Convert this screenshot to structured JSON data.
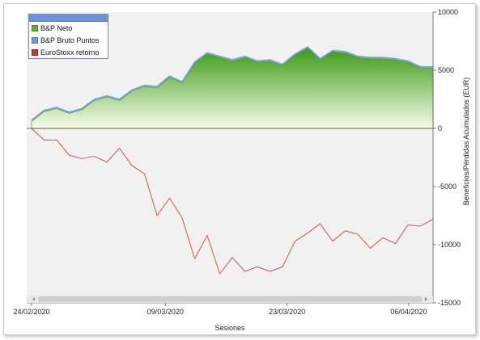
{
  "colors": {
    "neto_fill_top": "#3c9a16",
    "neto_fill_bottom": "#f7fbe9",
    "bruto_line": "#6e9ee0",
    "euro_line": "#d2553f",
    "plot_bg": "#f1f1f1",
    "scrollbar": "#cfcfcf"
  },
  "chart_data": {
    "type": "area",
    "xlabel": "Sesiones",
    "ylabel": "Beneficios/Pérdidas Acumulados (EUR)",
    "ylim": [
      -15000,
      10000
    ],
    "yticks": [
      10000,
      5000,
      0,
      -5000,
      -10000,
      -15000
    ],
    "ytick_labels": [
      "10000",
      "5000",
      "0",
      "-5000",
      "-10000",
      "-15000"
    ],
    "xlim": [
      0,
      33
    ],
    "xticks": [
      {
        "x": 0,
        "label": "24/02/2020"
      },
      {
        "x": 11,
        "label": "09/03/2020"
      },
      {
        "x": 21,
        "label": "23/03/2020"
      },
      {
        "x": 31,
        "label": "06/04/2020"
      }
    ],
    "legend_position": "top-left",
    "grid": false,
    "series": [
      {
        "name": "B&P Neto",
        "kind": "area",
        "values": [
          600,
          1450,
          1700,
          1300,
          1600,
          2400,
          2700,
          2400,
          3200,
          3600,
          3500,
          4400,
          3900,
          5600,
          6400,
          6100,
          5800,
          6100,
          5700,
          5800,
          5400,
          6300,
          6900,
          5900,
          6600,
          6500,
          6100,
          6000,
          6000,
          5900,
          5700,
          5200,
          5200
        ]
      },
      {
        "name": "B&P Bruto Puntos",
        "kind": "line",
        "values": [
          700,
          1550,
          1800,
          1400,
          1700,
          2500,
          2800,
          2500,
          3300,
          3700,
          3600,
          4500,
          4000,
          5700,
          6500,
          6200,
          5900,
          6200,
          5800,
          5900,
          5500,
          6400,
          7000,
          6000,
          6700,
          6600,
          6200,
          6100,
          6100,
          6000,
          5800,
          5300,
          5300
        ]
      },
      {
        "name": "EuroStoxx retorno",
        "kind": "line",
        "values": [
          0,
          -1000,
          -1000,
          -2300,
          -2600,
          -2400,
          -2900,
          -1700,
          -3200,
          -3900,
          -7500,
          -6000,
          -7700,
          -11200,
          -9200,
          -12500,
          -11100,
          -12300,
          -11900,
          -12300,
          -11900,
          -9700,
          -9000,
          -8200,
          -9700,
          -8800,
          -9100,
          -10300,
          -9400,
          -9900,
          -8300,
          -8400,
          -7800
        ]
      }
    ]
  }
}
